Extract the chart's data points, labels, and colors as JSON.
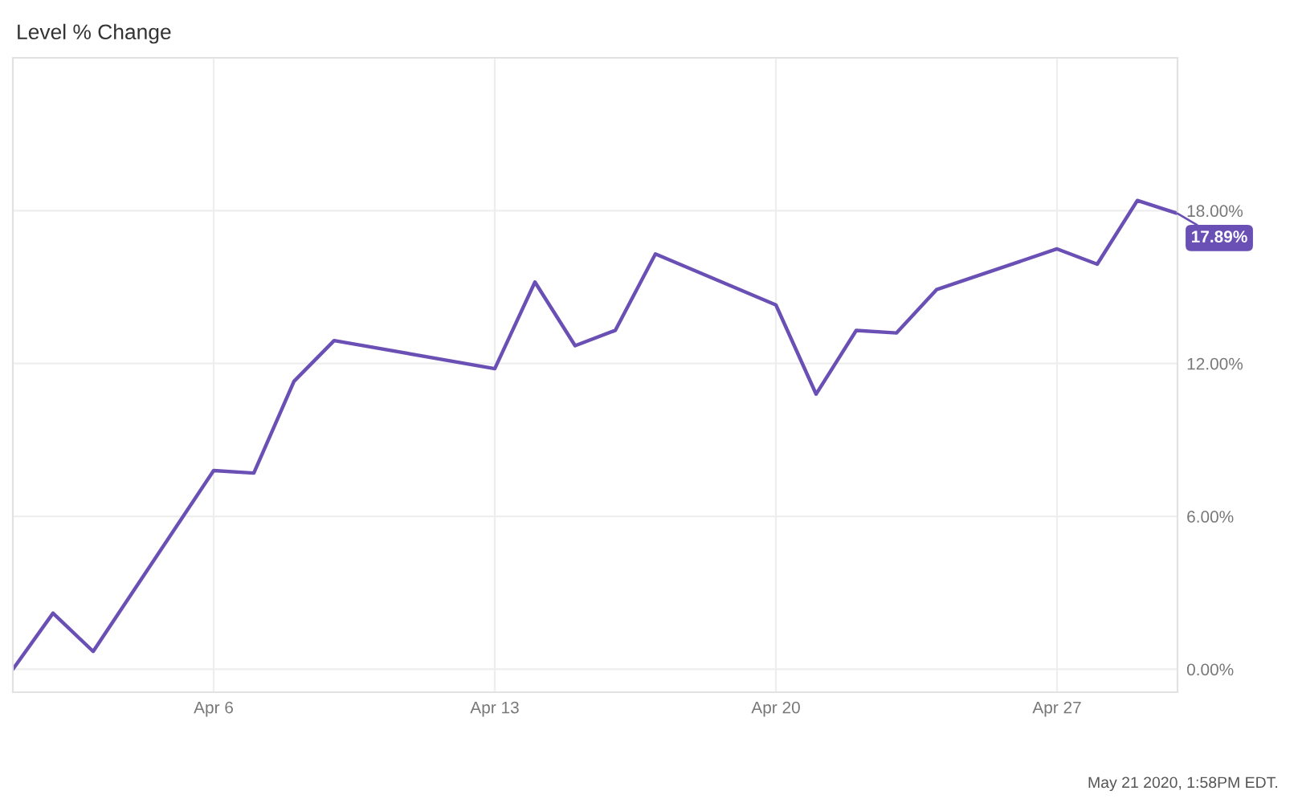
{
  "chart_data": {
    "type": "line",
    "title": "Level % Change",
    "x": [
      "2020-04-01",
      "2020-04-02",
      "2020-04-03",
      "2020-04-06",
      "2020-04-07",
      "2020-04-08",
      "2020-04-09",
      "2020-04-13",
      "2020-04-14",
      "2020-04-15",
      "2020-04-16",
      "2020-04-17",
      "2020-04-20",
      "2020-04-21",
      "2020-04-22",
      "2020-04-23",
      "2020-04-24",
      "2020-04-27",
      "2020-04-28",
      "2020-04-29",
      "2020-04-30"
    ],
    "series": [
      {
        "color": "#6a50b5",
        "values": [
          0.0,
          2.2,
          0.7,
          7.8,
          7.7,
          11.3,
          12.9,
          11.8,
          15.2,
          12.7,
          13.3,
          16.3,
          14.3,
          10.8,
          13.3,
          13.2,
          14.9,
          16.5,
          15.9,
          18.4,
          17.89
        ]
      }
    ],
    "xlim": [
      "2020-04-01",
      "2020-04-30"
    ],
    "xticks": [
      {
        "value": "2020-04-06",
        "label": "Apr 6"
      },
      {
        "value": "2020-04-13",
        "label": "Apr 13"
      },
      {
        "value": "2020-04-20",
        "label": "Apr 20"
      },
      {
        "value": "2020-04-27",
        "label": "Apr 27"
      }
    ],
    "ylim": [
      -0.9,
      24.0
    ],
    "yticks": [
      {
        "value": 0,
        "label": "0.00%"
      },
      {
        "value": 6,
        "label": "6.00%"
      },
      {
        "value": 12,
        "label": "12.00%"
      },
      {
        "value": 18,
        "label": "18.00%"
      }
    ],
    "grid": true,
    "line_style": "solid",
    "annotations": [
      {
        "text": "17.89%",
        "x": "2020-04-30",
        "y": 17.89
      },
      "May 21 2020, 1:58PM EDT."
    ]
  }
}
